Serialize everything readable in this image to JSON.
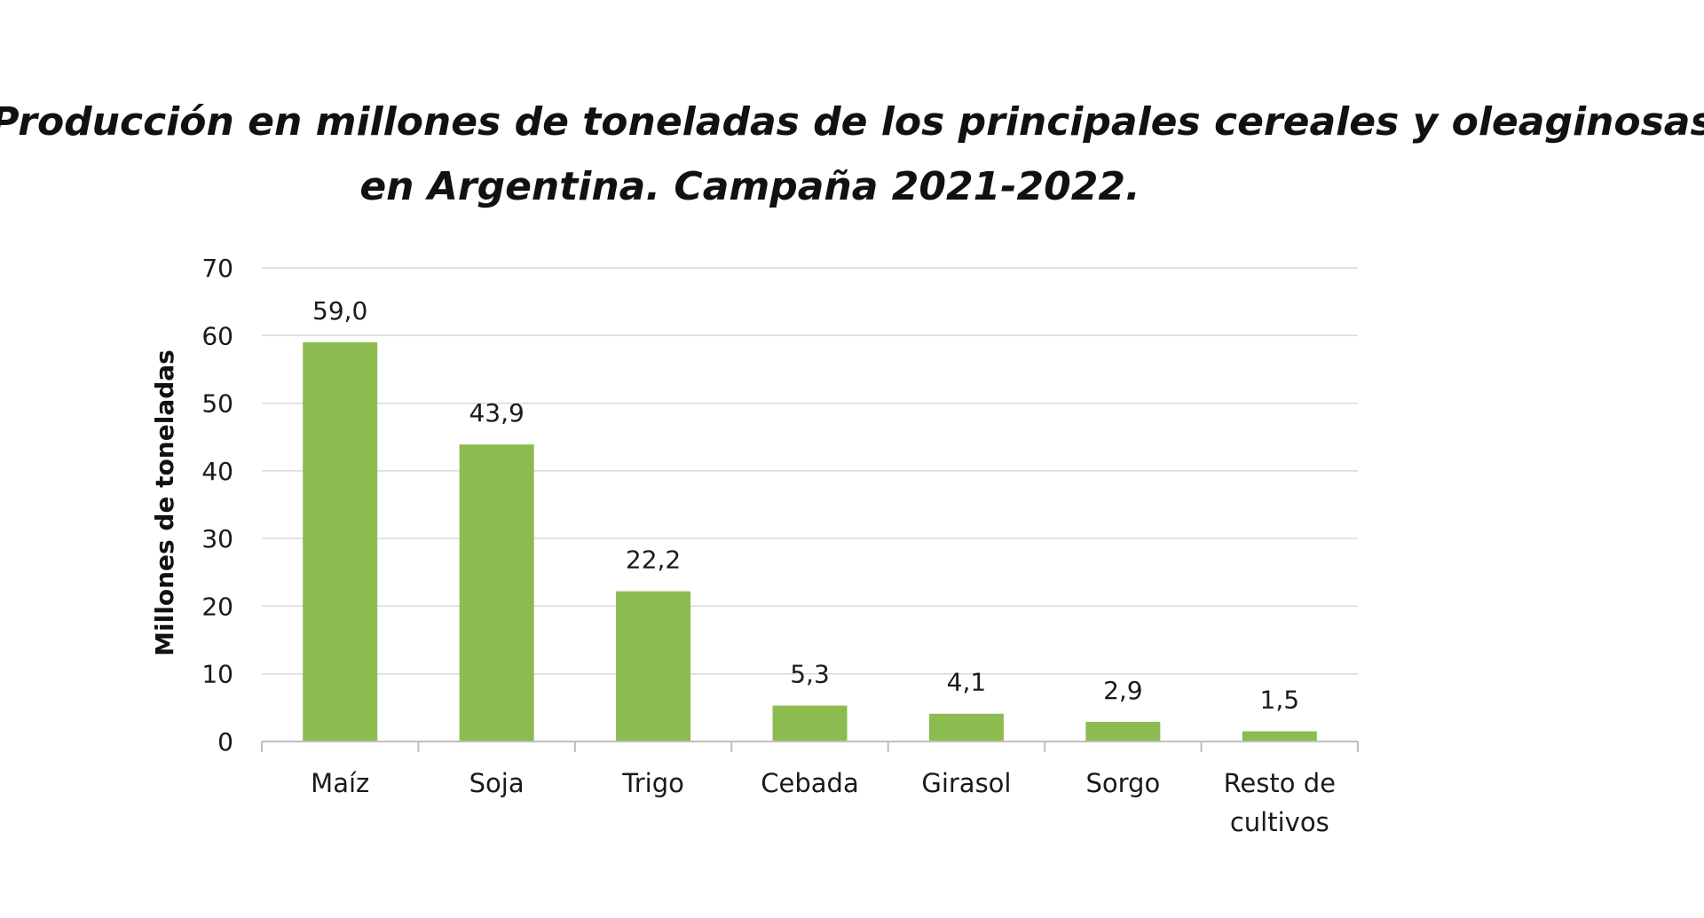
{
  "chart_data": {
    "type": "bar",
    "title_lines": [
      "Producción en millones de toneladas de los principales cereales y oleaginosas",
      "en Argentina. Campaña 2021-2022."
    ],
    "xlabel": "",
    "ylabel": "Millones de toneladas",
    "ylim": [
      0,
      70
    ],
    "yticks": [
      0,
      10,
      20,
      30,
      40,
      50,
      60,
      70
    ],
    "categories": [
      [
        "Maíz"
      ],
      [
        "Soja"
      ],
      [
        "Trigo"
      ],
      [
        "Cebada"
      ],
      [
        "Girasol"
      ],
      [
        "Sorgo"
      ],
      [
        "Resto de",
        "cultivos"
      ]
    ],
    "values": [
      59.0,
      43.9,
      22.2,
      5.3,
      4.1,
      2.9,
      1.5
    ],
    "value_labels": [
      "59,0",
      "43,9",
      "22,2",
      "5,3",
      "4,1",
      "2,9",
      "1,5"
    ],
    "grid": true,
    "legend": "none",
    "colors": {
      "bar": "#8cbb50",
      "grid": "#d9d9d9",
      "axis": "#bfbfbf"
    }
  }
}
